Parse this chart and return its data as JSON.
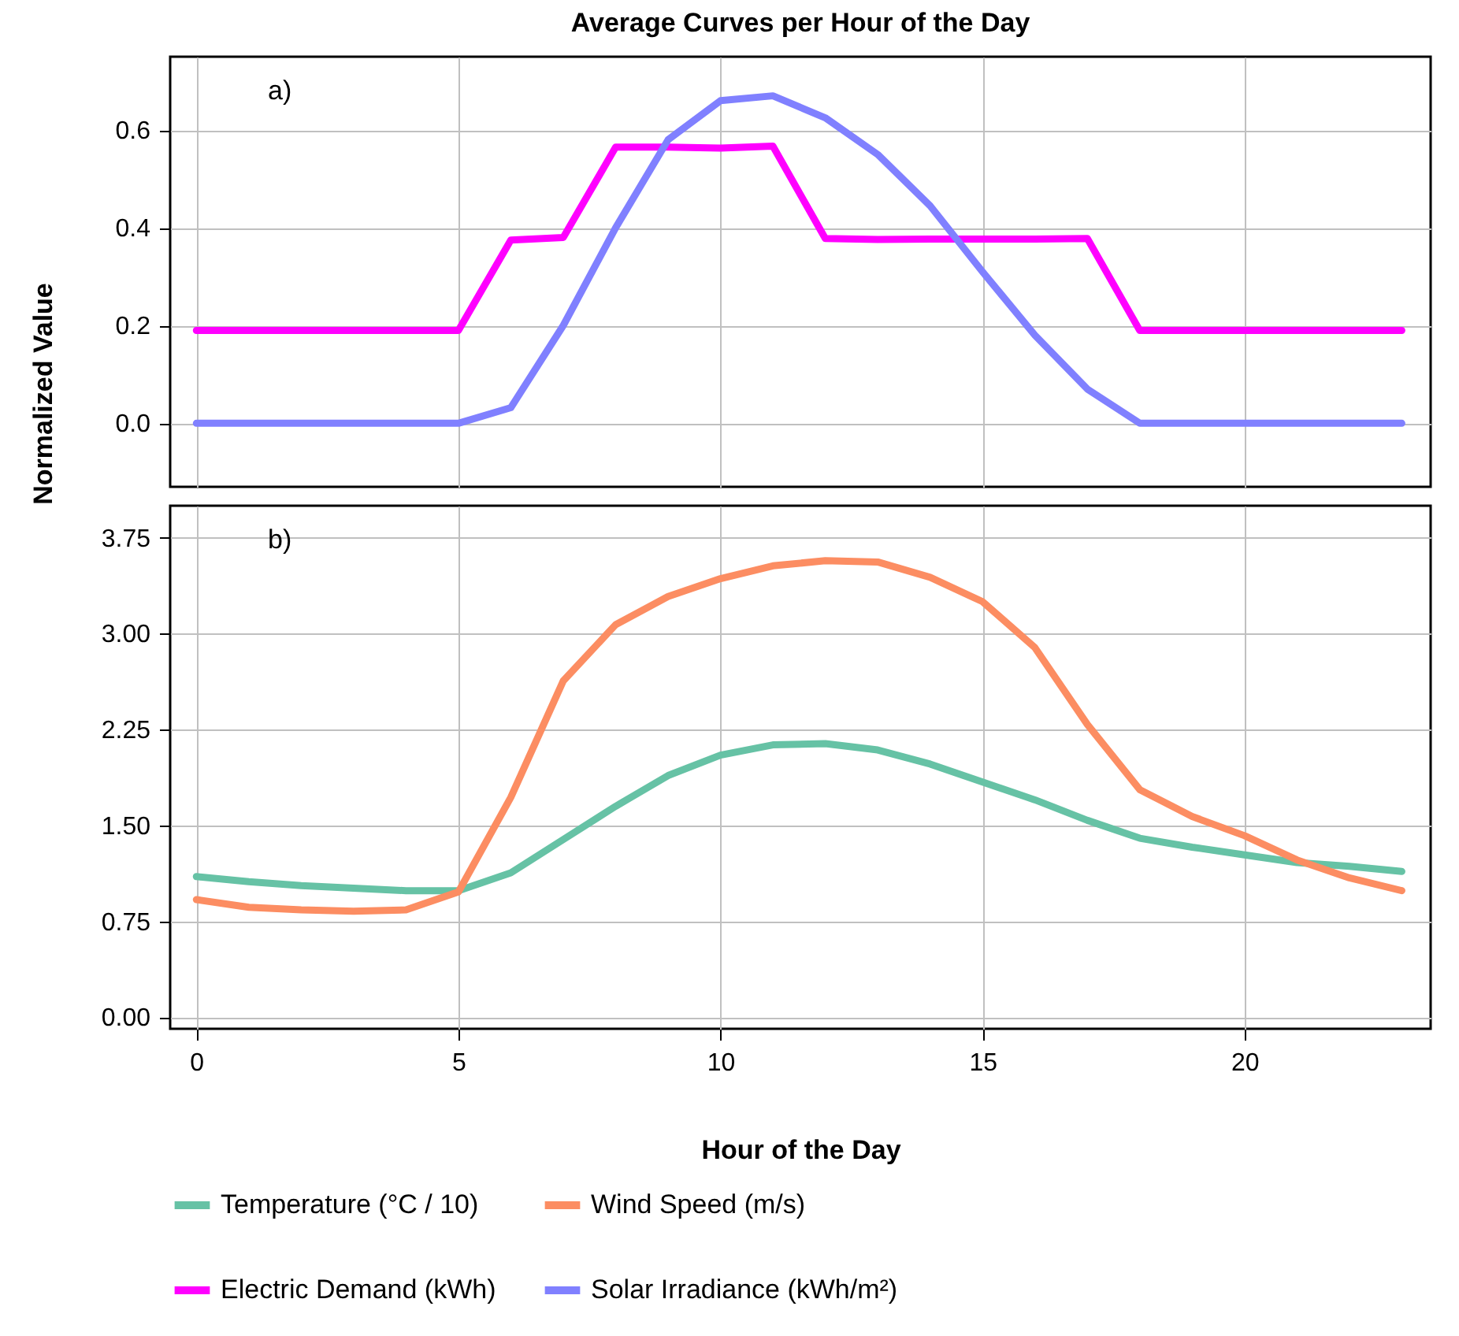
{
  "chart_data": [
    {
      "type": "line",
      "title": "Average Curves per Hour of the Day",
      "ylabel": "Normalized Value",
      "annotations": [
        "a)"
      ],
      "x": [
        0,
        1,
        2,
        3,
        4,
        5,
        6,
        7,
        8,
        9,
        10,
        11,
        12,
        13,
        14,
        15,
        16,
        17,
        18,
        19,
        20,
        21,
        22,
        23
      ],
      "series": [
        {
          "name": "Electric Demand (kWh)",
          "color": "#ff00ff",
          "values": [
            0.19,
            0.19,
            0.19,
            0.19,
            0.19,
            0.19,
            0.375,
            0.38,
            0.565,
            0.565,
            0.563,
            0.567,
            0.378,
            0.376,
            0.377,
            0.377,
            0.377,
            0.378,
            0.19,
            0.19,
            0.19,
            0.19,
            0.19,
            0.19
          ]
        },
        {
          "name": "Solar Irradiance (kWh/m²)",
          "color": "#8080ff",
          "values": [
            0,
            0,
            0,
            0,
            0,
            0,
            0.032,
            0.2,
            0.4,
            0.58,
            0.66,
            0.67,
            0.625,
            0.55,
            0.445,
            0.31,
            0.18,
            0.07,
            0,
            0,
            0,
            0,
            0,
            0
          ]
        }
      ],
      "xlim": [
        -0.5,
        23.55
      ],
      "xticks": [
        0,
        5,
        10,
        15,
        20
      ],
      "ylim": [
        -0.13,
        0.75
      ],
      "yticks": [
        {
          "value": 0,
          "label": "0.0"
        },
        {
          "value": 0.2,
          "label": "0.2"
        },
        {
          "value": 0.4,
          "label": "0.4"
        },
        {
          "value": 0.6,
          "label": "0.6"
        }
      ],
      "tick_labels": "y",
      "grid": true,
      "legend": "bottom",
      "marker": "none",
      "line_style": "solid"
    },
    {
      "type": "line",
      "xlabel": "Hour of the Day",
      "annotations": [
        "b)"
      ],
      "x": [
        0,
        1,
        2,
        3,
        4,
        5,
        6,
        7,
        8,
        9,
        10,
        11,
        12,
        13,
        14,
        15,
        16,
        17,
        18,
        19,
        20,
        21,
        22,
        23
      ],
      "series": [
        {
          "name": "Temperature (°C / 10)",
          "color": "#66c2a5",
          "values": [
            1.1,
            1.06,
            1.03,
            1.01,
            0.99,
            0.99,
            1.13,
            1.39,
            1.65,
            1.89,
            2.05,
            2.13,
            2.14,
            2.09,
            1.98,
            1.84,
            1.7,
            1.54,
            1.4,
            1.33,
            1.27,
            1.21,
            1.18,
            1.14
          ]
        },
        {
          "name": "Wind Speed (m/s)",
          "color": "#fc8d62",
          "values": [
            0.92,
            0.86,
            0.84,
            0.83,
            0.84,
            0.98,
            1.72,
            2.63,
            3.07,
            3.29,
            3.43,
            3.53,
            3.57,
            3.56,
            3.44,
            3.25,
            2.89,
            2.29,
            1.78,
            1.57,
            1.42,
            1.23,
            1.09,
            0.99
          ]
        }
      ],
      "xlim": [
        -0.5,
        23.55
      ],
      "xticks": [
        0,
        5,
        10,
        15,
        20
      ],
      "ylim": [
        -0.09,
        4.0
      ],
      "yticks": [
        {
          "value": 0,
          "label": "0.00"
        },
        {
          "value": 0.75,
          "label": "0.75"
        },
        {
          "value": 1.5,
          "label": "1.50"
        },
        {
          "value": 2.25,
          "label": "2.25"
        },
        {
          "value": 3,
          "label": "3.00"
        },
        {
          "value": 3.75,
          "label": "3.75"
        }
      ],
      "grid": true,
      "legend": "bottom",
      "marker": "none",
      "line_style": "solid"
    }
  ]
}
